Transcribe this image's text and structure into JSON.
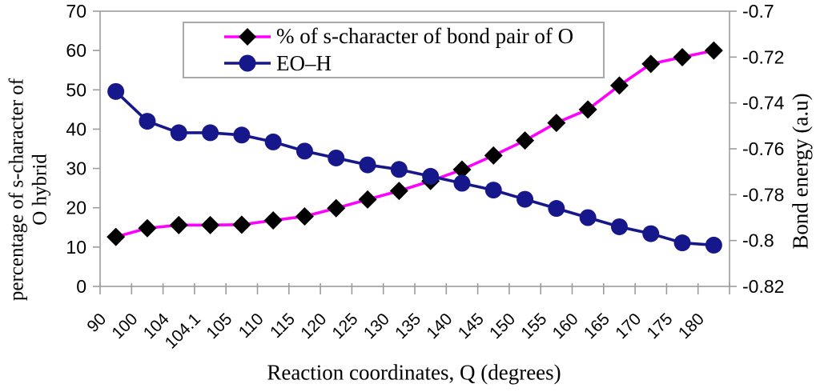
{
  "chart_data": {
    "type": "line",
    "title": "",
    "xlabel": "Reaction coordinates, Q (degrees)",
    "ylabel_left_lines": [
      "percentage of s-character of",
      "O hybrid"
    ],
    "ylabel_right": "Bond energy (a.u)",
    "categories": [
      "90",
      "100",
      "104",
      "104.1",
      "105",
      "110",
      "115",
      "120",
      "125",
      "130",
      "135",
      "140",
      "145",
      "150",
      "155",
      "160",
      "165",
      "170",
      "175",
      "180"
    ],
    "left_axis": {
      "min": 0,
      "max": 70,
      "tick_values": [
        0,
        10,
        20,
        30,
        40,
        50,
        60,
        70
      ],
      "tick_labels": [
        "0",
        "10",
        "20",
        "30",
        "40",
        "50",
        "60",
        "70"
      ]
    },
    "right_axis": {
      "min": -0.82,
      "max": -0.7,
      "tick_values": [
        -0.82,
        -0.8,
        -0.78,
        -0.76,
        -0.74,
        -0.72,
        -0.7
      ],
      "tick_labels": [
        "-0.82",
        "-0.8",
        "-0.78",
        "-0.76",
        "-0.74",
        "-0.72",
        "-0.7"
      ]
    },
    "series": [
      {
        "name": "% of s-character of bond pair of O",
        "axis": "left",
        "line_color": "#ff00ff",
        "marker": "diamond",
        "marker_color": "#000000",
        "values": [
          12.6,
          14.8,
          15.6,
          15.6,
          15.7,
          16.8,
          17.8,
          19.9,
          22.1,
          24.3,
          26.8,
          29.7,
          33.3,
          37.1,
          41.6,
          45.0,
          51.1,
          56.6,
          58.3,
          60.0
        ]
      },
      {
        "name": "EO–H",
        "axis": "right",
        "line_color": "#17178c",
        "marker": "circle",
        "marker_color": "#17178c",
        "values": [
          -0.735,
          -0.748,
          -0.753,
          -0.753,
          -0.754,
          -0.757,
          -0.761,
          -0.764,
          -0.767,
          -0.769,
          -0.772,
          -0.775,
          -0.778,
          -0.782,
          -0.786,
          -0.79,
          -0.794,
          -0.797,
          -0.801,
          -0.802
        ]
      }
    ],
    "legend_position": "top-center",
    "grid": false,
    "axis_line_color": "#9c9c9c",
    "tick_label_color": "#000000"
  }
}
